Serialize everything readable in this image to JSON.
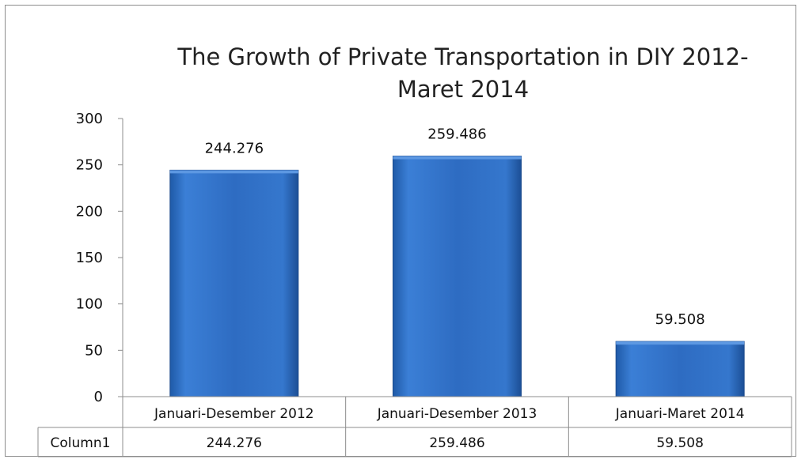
{
  "chart_data": {
    "type": "bar",
    "title_lines": [
      "The Growth of Private Transportation in DIY 2012-",
      "Maret 2014"
    ],
    "categories": [
      "Januari-Desember 2012",
      "Januari-Desember 2013",
      "Januari-Maret 2014"
    ],
    "values": [
      244.276,
      259.486,
      59.508
    ],
    "data_labels": [
      "244.276",
      "259.486",
      "59.508"
    ],
    "ylim": [
      0,
      300
    ],
    "yticks": [
      0,
      50,
      100,
      150,
      200,
      250,
      300
    ],
    "legend": "none",
    "grid": false,
    "bar_color": "#2f6fc4",
    "data_table": {
      "row_label": "Column1",
      "cells": [
        "244.276",
        "259.486",
        "59.508"
      ]
    }
  }
}
